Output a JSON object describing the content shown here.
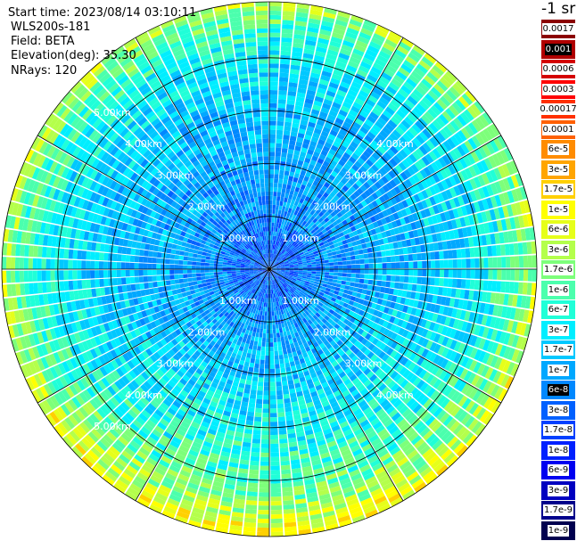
{
  "header": {
    "start_time": "Start time: 2023/08/14 03:10:11",
    "instrument": "WLS200s-181",
    "field": "Field: BETA",
    "elevation": "Elevation(deg): 35.30",
    "nrays": "NRays: 120"
  },
  "colorbar": {
    "units": "-1 sr",
    "levels": [
      {
        "label": "0.0017",
        "color": "#8b0000",
        "style": "white"
      },
      {
        "label": "0.001",
        "color": "#b00000",
        "style": "dark"
      },
      {
        "label": "0.0006",
        "color": "#d40000",
        "style": "white"
      },
      {
        "label": "0.0003",
        "color": "#ff0000",
        "style": "white"
      },
      {
        "label": "0.00017",
        "color": "#ff3000",
        "style": "white"
      },
      {
        "label": "0.0001",
        "color": "#ff6000",
        "style": "white"
      },
      {
        "label": "6e-5",
        "color": "#ff8c00",
        "style": "white"
      },
      {
        "label": "3e-5",
        "color": "#ffa500",
        "style": "white"
      },
      {
        "label": "1.7e-5",
        "color": "#ffd000",
        "style": "white"
      },
      {
        "label": "1e-5",
        "color": "#ffff00",
        "style": "white"
      },
      {
        "label": "6e-6",
        "color": "#e6ff1a",
        "style": "white"
      },
      {
        "label": "3e-6",
        "color": "#b4ff4b",
        "style": "white"
      },
      {
        "label": "1.7e-6",
        "color": "#7dff7a",
        "style": "white"
      },
      {
        "label": "1e-6",
        "color": "#4bffad",
        "style": "white"
      },
      {
        "label": "6e-7",
        "color": "#20ffd8",
        "style": "white"
      },
      {
        "label": "3e-7",
        "color": "#00eeff",
        "style": "white"
      },
      {
        "label": "1.7e-7",
        "color": "#00c8ff",
        "style": "white"
      },
      {
        "label": "1e-7",
        "color": "#00a8ff",
        "style": "white"
      },
      {
        "label": "6e-8",
        "color": "#0088ff",
        "style": "dark"
      },
      {
        "label": "3e-8",
        "color": "#0060ff",
        "style": "white"
      },
      {
        "label": "1.7e-8",
        "color": "#0040ff",
        "style": "white"
      },
      {
        "label": "1e-8",
        "color": "#0020ff",
        "style": "white"
      },
      {
        "label": "6e-9",
        "color": "#0000f0",
        "style": "white"
      },
      {
        "label": "3e-9",
        "color": "#0000c0",
        "style": "white"
      },
      {
        "label": "1.7e-9",
        "color": "#00008b",
        "style": "white"
      },
      {
        "label": "1e-9",
        "color": "#00004f",
        "style": "white"
      }
    ]
  },
  "chart_data": {
    "type": "heatmap",
    "subtype": "polar-ppi",
    "field": "BETA",
    "elevation_deg": 35.3,
    "nrays": 120,
    "range_rings_km": [
      1,
      2,
      3,
      4
    ],
    "max_range_km": 5.06,
    "ring_labels": [
      "1.00km",
      "2.00km",
      "3.00km",
      "4.00km",
      "5.00km"
    ],
    "spokes_deg": [
      0,
      30,
      60,
      90,
      120,
      150,
      180,
      210,
      240,
      270,
      300,
      330
    ],
    "colorscale": "log",
    "value_range": [
      1e-09,
      0.0017
    ],
    "typical_value_by_range_km": [
      {
        "range_km": 0.5,
        "value": 3e-08
      },
      {
        "range_km": 1.0,
        "value": 6e-08
      },
      {
        "range_km": 2.0,
        "value": 1e-07
      },
      {
        "range_km": 3.0,
        "value": 1.5e-07
      },
      {
        "range_km": 4.0,
        "value": 3e-07
      },
      {
        "range_km": 4.7,
        "value": 1e-06
      },
      {
        "range_km": 5.0,
        "value": 3e-06
      }
    ]
  }
}
